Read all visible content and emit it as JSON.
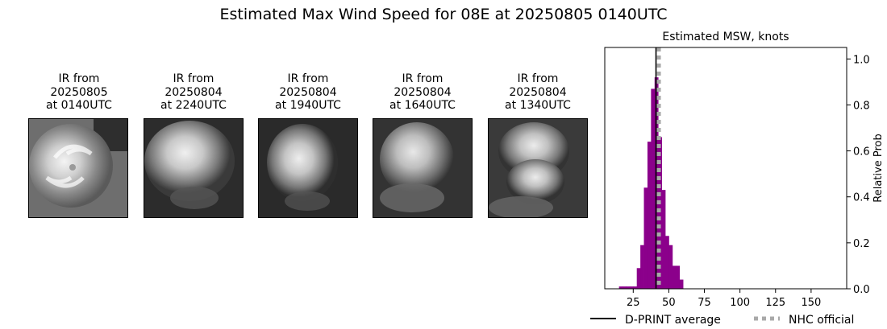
{
  "main_title": "Estimated Max Wind Speed for 08E at 20250805 0140UTC",
  "ir_panels": [
    {
      "label": "IR from\n20250805\nat 0140UTC"
    },
    {
      "label": "IR from\n20250804\nat 2240UTC"
    },
    {
      "label": "IR from\n20250804\nat 1940UTC"
    },
    {
      "label": "IR from\n20250804\nat 1640UTC"
    },
    {
      "label": "IR from\n20250804\nat 1340UTC"
    }
  ],
  "chart_data": {
    "type": "bar",
    "title": "Estimated MSW, knots",
    "xlabel": "",
    "ylabel": "Relative Prob",
    "xlim": [
      5,
      175
    ],
    "ylim": [
      0,
      1.05
    ],
    "xticks": [
      25,
      50,
      75,
      100,
      125,
      150
    ],
    "yticks": [
      0.0,
      0.2,
      0.4,
      0.6,
      0.8,
      1.0
    ],
    "bin_width": 2.5,
    "bars": [
      {
        "x": 15,
        "y": 0.01
      },
      {
        "x": 17.5,
        "y": 0.01
      },
      {
        "x": 20,
        "y": 0.01
      },
      {
        "x": 22.5,
        "y": 0.01
      },
      {
        "x": 25,
        "y": 0.01
      },
      {
        "x": 27.5,
        "y": 0.09
      },
      {
        "x": 30,
        "y": 0.19
      },
      {
        "x": 32.5,
        "y": 0.44
      },
      {
        "x": 35,
        "y": 0.64
      },
      {
        "x": 37.5,
        "y": 0.87
      },
      {
        "x": 40,
        "y": 0.92
      },
      {
        "x": 42.5,
        "y": 0.66
      },
      {
        "x": 45,
        "y": 0.43
      },
      {
        "x": 47.5,
        "y": 0.23
      },
      {
        "x": 50,
        "y": 0.19
      },
      {
        "x": 52.5,
        "y": 0.1
      },
      {
        "x": 55,
        "y": 0.1
      },
      {
        "x": 57.5,
        "y": 0.04
      }
    ],
    "dprint_average": 41,
    "nhc_official": 43,
    "bar_color": "#8b008b",
    "dprint_color": "#000000",
    "nhc_color": "#a9a9a9",
    "legend": [
      {
        "label": "D-PRINT average",
        "style": "solid"
      },
      {
        "label": "NHC official",
        "style": "dotted"
      }
    ],
    "legend_position": "bottom"
  }
}
